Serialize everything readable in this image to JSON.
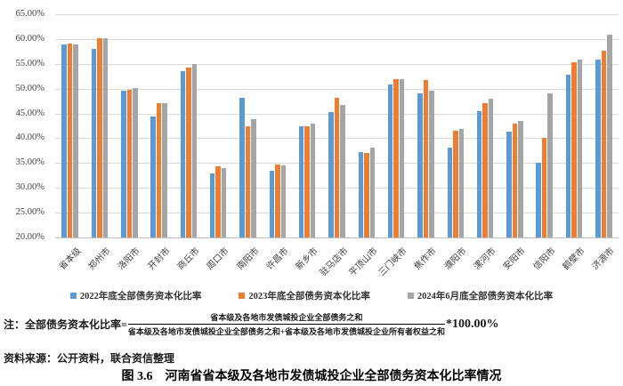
{
  "chart_data": {
    "type": "bar",
    "categories": [
      "省本级",
      "郑州市",
      "洛阳市",
      "开封市",
      "商丘市",
      "周口市",
      "南阳市",
      "许昌市",
      "新乡市",
      "驻马店市",
      "平顶山市",
      "三门峡市",
      "焦作市",
      "濮阳市",
      "漯河市",
      "安阳市",
      "信阳市",
      "鹤壁市",
      "济源市"
    ],
    "series": [
      {
        "name": "2022年底全部债务资本化比率",
        "color": "#5B9BD5",
        "values": [
          58.9,
          58.1,
          49.5,
          44.4,
          53.6,
          33.0,
          48.2,
          33.4,
          42.4,
          45.3,
          37.3,
          50.8,
          49.0,
          38.1,
          45.5,
          41.4,
          35.0,
          52.8,
          55.9
        ]
      },
      {
        "name": "2023年底全部债务资本化比率",
        "color": "#ED7D31",
        "values": [
          59.0,
          60.2,
          49.7,
          47.1,
          54.3,
          34.3,
          42.5,
          34.7,
          42.4,
          48.1,
          37.1,
          51.9,
          51.8,
          41.5,
          47.0,
          43.0,
          40.1,
          55.3,
          57.6
        ]
      },
      {
        "name": "2024年6月底全部债务资本化比率",
        "color": "#A5A5A5",
        "values": [
          58.9,
          60.2,
          50.1,
          47.0,
          55.0,
          34.0,
          43.8,
          34.5,
          43.0,
          46.7,
          38.1,
          52.0,
          49.5,
          41.8,
          47.9,
          43.4,
          49.0,
          55.9,
          60.9
        ]
      }
    ],
    "title": "",
    "xlabel": "",
    "ylabel": "",
    "ylim": [
      20,
      65
    ],
    "ytick_step": 5,
    "ytick_labels": [
      "65.00%",
      "60.00%",
      "55.00%",
      "50.00%",
      "45.00%",
      "40.00%",
      "35.00%",
      "30.00%",
      "25.00%",
      "20.00%"
    ],
    "grid": true,
    "legend_position": "bottom"
  },
  "colors": {
    "series_2022": "#5B9BD5",
    "series_2023": "#ED7D31",
    "series_2024": "#A5A5A5",
    "gridline": "#d9d9d9"
  },
  "note": {
    "prefix": "注：全部债务资本化比率=",
    "numerator": "省本级及各地市发债城投企业全部债务之和",
    "denominator": "省本级及各地市发债城投企业全部债务之和+省本级及各地市发债城投企业所有者权益之和",
    "suffix": "*100.00%"
  },
  "source": "资料来源：公开资料，联合资信整理",
  "caption": "图 3.6　河南省省本级及各地市发债城投企业全部债务资本化比率情况"
}
